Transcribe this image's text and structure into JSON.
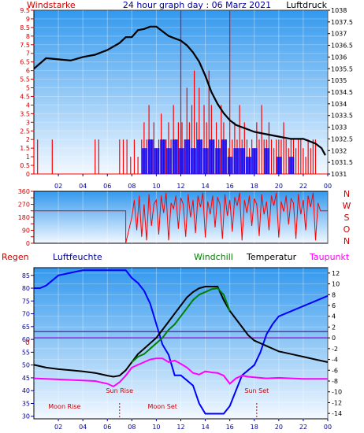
{
  "header": {
    "title": "24 hour graph day : 06 Marz 2021",
    "left_label": "Windstarke",
    "right_label": "Luftdruck"
  },
  "colors": {
    "wind": "#ff0000",
    "gust_bars": "#0000ff",
    "pressure": "#000000",
    "humidity": "#0000ff",
    "temperature": "#000000",
    "windchill": "#008000",
    "dewpoint": "#ff00ff",
    "rain": "#ff0000",
    "panel_top": "#3399ee",
    "panel_bottom": "#f2f8ff",
    "axis_red": "#cc0000",
    "axis_blue": "#000099",
    "annotation": "#cc0000"
  },
  "chart_data": [
    {
      "type": "line",
      "id": "wind-pressure",
      "x_ticks": [
        "02",
        "04",
        "06",
        "08",
        "10",
        "12",
        "14",
        "16",
        "18",
        "20",
        "22",
        "00"
      ],
      "y_left_label": "Windstarke",
      "y_left_ticks": [
        "0",
        "0.5",
        "1",
        "1.5",
        "2",
        "2.5",
        "3",
        "3.5",
        "4",
        "4.5",
        "5",
        "5.5",
        "6",
        "6.5",
        "7",
        "7.5",
        "8",
        "8.5",
        "9",
        "9.5"
      ],
      "ylim_left": [
        0,
        9.5
      ],
      "y_right_label": "Luftdruck",
      "y_right_ticks": [
        "1031",
        "1031.5",
        "1032",
        "1032.5",
        "1033",
        "1033.5",
        "1034",
        "1034.5",
        "1035",
        "1035.5",
        "1036",
        "1036.5",
        "1037",
        "1037.5",
        "1038"
      ],
      "ylim_right": [
        1031,
        1038
      ],
      "series": [
        {
          "name": "Luftdruck",
          "axis": "right",
          "x": [
            0,
            1,
            2,
            3,
            4,
            5,
            6,
            7,
            7.5,
            8,
            8.5,
            9,
            9.5,
            10,
            10.5,
            11,
            11.5,
            12,
            12.5,
            13,
            13.5,
            14,
            14.5,
            15,
            15.5,
            16,
            16.5,
            17,
            17.5,
            18,
            19,
            20,
            21,
            22,
            23,
            23.5,
            23.8
          ],
          "y": [
            1035.5,
            1035.95,
            1035.9,
            1035.85,
            1036.0,
            1036.1,
            1036.3,
            1036.6,
            1036.85,
            1036.85,
            1037.15,
            1037.2,
            1037.3,
            1037.3,
            1037.1,
            1036.9,
            1036.8,
            1036.7,
            1036.5,
            1036.2,
            1035.8,
            1035.2,
            1034.5,
            1034.0,
            1033.6,
            1033.3,
            1033.1,
            1033.0,
            1032.9,
            1032.8,
            1032.7,
            1032.6,
            1032.5,
            1032.5,
            1032.3,
            1032.1,
            1031.8
          ]
        },
        {
          "name": "Windstarke",
          "axis": "left",
          "x": [
            0,
            0.3,
            1.5,
            5.0,
            5.3,
            7.0,
            7.3,
            7.6,
            7.9,
            8.2,
            8.5,
            8.8,
            9.0,
            9.2,
            9.4,
            9.6,
            9.8,
            10.0,
            10.2,
            10.4,
            10.6,
            10.8,
            11.0,
            11.2,
            11.4,
            11.6,
            11.8,
            12.0,
            12.1,
            12.3,
            12.5,
            12.7,
            12.9,
            13.1,
            13.3,
            13.5,
            13.7,
            13.9,
            14.1,
            14.3,
            14.5,
            14.7,
            14.9,
            15.1,
            15.3,
            15.5,
            15.7,
            15.9,
            16.0,
            16.2,
            16.4,
            16.6,
            16.8,
            17.0,
            17.2,
            17.4,
            17.6,
            17.8,
            18.0,
            18.2,
            18.4,
            18.6,
            18.8,
            19.0,
            19.2,
            19.4,
            19.6,
            19.8,
            20.0,
            20.2,
            20.4,
            20.6,
            20.8,
            21.0,
            21.2,
            21.4,
            21.6,
            21.8,
            22.0,
            22.2,
            22.4,
            22.6,
            22.8,
            23.0
          ],
          "y": [
            2,
            2,
            2,
            2,
            2,
            2,
            2,
            2,
            1,
            2,
            1,
            2,
            3,
            2,
            4,
            2,
            3,
            1.5,
            2,
            3.5,
            2,
            2,
            3,
            2,
            4,
            2,
            3,
            9.5,
            3,
            2,
            5,
            3,
            4,
            6,
            3,
            5,
            2,
            4,
            3,
            6,
            4,
            2,
            3,
            2,
            4,
            3,
            2,
            1.5,
            9.5,
            2,
            3,
            2,
            4,
            2,
            3,
            2,
            1.5,
            2,
            1.5,
            3,
            2,
            4,
            2,
            2,
            3,
            2,
            1.5,
            2,
            2,
            2,
            3,
            2,
            1.5,
            2,
            2,
            1.5,
            2,
            2,
            1.5,
            1,
            2,
            1.5,
            2,
            2
          ]
        },
        {
          "name": "Wind direction bars (blue)",
          "axis": "left",
          "x": [
            9.0,
            9.5,
            10.0,
            10.5,
            11.0,
            11.5,
            12.0,
            12.5,
            13.0,
            13.5,
            14.0,
            14.5,
            15.0,
            15.5,
            16.0,
            16.5,
            17.0,
            17.5,
            18.0,
            19.0,
            20.0,
            21.0
          ],
          "y": [
            1.5,
            2,
            1.5,
            2,
            1.5,
            2,
            1.5,
            2,
            1.5,
            2,
            1.5,
            2,
            1.5,
            2,
            1,
            1.5,
            1.5,
            1,
            1.5,
            1.5,
            1,
            1
          ]
        }
      ]
    },
    {
      "type": "scatter",
      "id": "wind-direction",
      "x_ticks": [
        "02",
        "04",
        "06",
        "08",
        "10",
        "12",
        "14",
        "16",
        "18",
        "20",
        "22",
        "00"
      ],
      "y_ticks": [
        "0",
        "45",
        "90",
        "135",
        "180",
        "225",
        "270",
        "315",
        "360"
      ],
      "ylim": [
        0,
        360
      ],
      "compass": [
        "N",
        "W",
        "S",
        "O",
        "N"
      ],
      "series": [
        {
          "name": "Wind direction",
          "x": [
            0,
            7.5,
            7.5,
            8.0,
            8.2,
            8.4,
            8.6,
            8.8,
            9.0,
            9.2,
            9.4,
            9.6,
            9.8,
            10.0,
            10.2,
            10.4,
            10.6,
            10.8,
            11.0,
            11.2,
            11.4,
            11.6,
            11.8,
            12.0,
            12.2,
            12.4,
            12.6,
            12.8,
            13.0,
            13.2,
            13.4,
            13.6,
            13.8,
            14.0,
            14.2,
            14.4,
            14.6,
            14.8,
            15.0,
            15.2,
            15.4,
            15.6,
            15.8,
            16.0,
            16.2,
            16.4,
            16.6,
            16.8,
            17.0,
            17.2,
            17.4,
            17.6,
            17.8,
            18.0,
            18.2,
            18.4,
            18.6,
            18.8,
            19.0,
            19.2,
            19.4,
            19.6,
            19.8,
            20.0,
            20.2,
            20.4,
            20.6,
            20.8,
            21.0,
            21.2,
            21.4,
            21.6,
            21.8,
            22.0,
            22.2,
            22.4,
            22.6,
            22.8,
            23.0,
            23.2,
            23.4,
            23.6,
            23.8,
            24.0
          ],
          "y": [
            225,
            225,
            0,
            180,
            300,
            90,
            330,
            45,
            270,
            20,
            340,
            120,
            270,
            300,
            60,
            330,
            210,
            350,
            20,
            280,
            240,
            330,
            100,
            315,
            270,
            45,
            340,
            180,
            300,
            70,
            330,
            250,
            350,
            40,
            290,
            200,
            330,
            110,
            320,
            270,
            30,
            340,
            190,
            300,
            80,
            320,
            260,
            350,
            20,
            300,
            210,
            330,
            120,
            310,
            270,
            50,
            340,
            200,
            290,
            90,
            330,
            260,
            350,
            40,
            290,
            220,
            330,
            130,
            310,
            280,
            30,
            340,
            200,
            300,
            90,
            330,
            250,
            350,
            20,
            280,
            225,
            225,
            225,
            225
          ]
        }
      ]
    },
    {
      "type": "line",
      "id": "temp-humidity",
      "left_labels": [
        "Regen",
        "Luftfeuchte"
      ],
      "right_labels": [
        "Windchill",
        "Temperatur",
        "Taupunkt"
      ],
      "x_ticks": [
        "02",
        "04",
        "06",
        "08",
        "10",
        "12",
        "14",
        "16",
        "18",
        "20",
        "22",
        "00"
      ],
      "y_left_ticks": [
        "30",
        "35",
        "40",
        "45",
        "50",
        "55",
        "60",
        "65",
        "70",
        "75",
        "80",
        "85"
      ],
      "ylim_left": [
        29,
        88
      ],
      "y_right_ticks": [
        "-14",
        "-12",
        "-10",
        "-8",
        "-6",
        "-4",
        "-2",
        "0",
        "2",
        "4",
        "6",
        "8",
        "10",
        "12"
      ],
      "ylim_right": [
        -15,
        13
      ],
      "rain_zero_label": "0",
      "annotations": [
        {
          "text": "Sun Rise",
          "x": 7.0
        },
        {
          "text": "Sun Set",
          "x": 18.2
        },
        {
          "text": "Moon Rise",
          "x": 2.5
        },
        {
          "text": "Moon Set",
          "x": 10.5
        }
      ],
      "series": [
        {
          "name": "Luftfeuchte",
          "axis": "left",
          "x": [
            0,
            0.5,
            1.0,
            1.5,
            2.0,
            3.0,
            4.0,
            5.0,
            6.0,
            6.5,
            7.0,
            7.5,
            8.0,
            8.5,
            9.0,
            9.5,
            10.0,
            10.5,
            11.0,
            11.5,
            12.0,
            12.5,
            13.0,
            13.5,
            14.0,
            14.5,
            15.0,
            15.5,
            16.0,
            16.5,
            17.0,
            17.5,
            18.0,
            18.5,
            19.0,
            19.5,
            20.0,
            20.5,
            21.0,
            21.5,
            22.0,
            22.5,
            23.0,
            23.5,
            24.0
          ],
          "y": [
            80,
            80,
            81,
            83,
            85,
            86,
            87,
            87,
            87,
            87,
            87,
            87,
            84,
            82,
            79,
            74,
            66,
            58,
            54,
            46,
            46,
            44,
            42,
            35,
            31,
            31,
            31,
            31,
            34,
            40,
            46,
            48,
            50,
            55,
            62,
            66,
            69,
            70,
            71,
            72,
            73,
            74,
            75,
            76,
            77
          ]
        },
        {
          "name": "Temperatur",
          "axis": "right",
          "x": [
            0,
            1,
            2,
            3,
            4,
            5,
            6,
            6.5,
            7.0,
            7.5,
            8.0,
            8.5,
            9.0,
            9.5,
            10.0,
            10.5,
            11.0,
            11.5,
            12.0,
            12.5,
            13.0,
            13.5,
            14.0,
            14.5,
            15.0,
            15.5,
            16.0,
            16.5,
            17.0,
            17.5,
            18.0,
            18.5,
            19.0,
            19.5,
            20.0,
            21.0,
            22.0,
            23.0,
            24.0
          ],
          "y": [
            -5,
            -5.5,
            -5.8,
            -6,
            -6.2,
            -6.5,
            -7,
            -7.2,
            -7,
            -6,
            -4.5,
            -3,
            -2,
            -1,
            0,
            1.5,
            3,
            4.5,
            6,
            7.5,
            8.5,
            9.2,
            9.5,
            9.5,
            9.5,
            7,
            5,
            3.5,
            2,
            0.5,
            -0.5,
            -1,
            -1.5,
            -2,
            -2.5,
            -3,
            -3.5,
            -4,
            -4.5
          ]
        },
        {
          "name": "Windchill",
          "axis": "right",
          "x": [
            8.0,
            8.5,
            9.0,
            9.5,
            10.0,
            10.5,
            11.0,
            11.5,
            12.0,
            12.5,
            13.0,
            13.5,
            14.0,
            14.5,
            15.0,
            15.5,
            16.0
          ],
          "y": [
            -4.5,
            -3.5,
            -3,
            -2,
            -1,
            0,
            1.5,
            2.5,
            4,
            5.5,
            7,
            8,
            8.5,
            9,
            9.2,
            8,
            5
          ]
        },
        {
          "name": "Taupunkt",
          "axis": "right",
          "x": [
            0,
            1,
            2,
            3,
            4,
            5,
            6,
            6.5,
            7.0,
            7.5,
            8.0,
            8.5,
            9.0,
            9.5,
            10.0,
            10.5,
            11.0,
            11.5,
            12.0,
            12.5,
            13.0,
            13.5,
            14.0,
            14.5,
            15.0,
            15.5,
            16.0,
            16.5,
            17.0,
            17.5,
            18.0,
            19.0,
            20.0,
            21.0,
            22.0,
            23.0,
            24.0
          ],
          "y": [
            -7.5,
            -7.6,
            -7.7,
            -7.8,
            -7.9,
            -8,
            -8.5,
            -9,
            -8.2,
            -7,
            -5.5,
            -5,
            -4.5,
            -4,
            -3.8,
            -3.8,
            -4.5,
            -4.2,
            -4.8,
            -5.5,
            -6.5,
            -6.8,
            -6.2,
            -6.4,
            -6.5,
            -7,
            -8.5,
            -7.5,
            -7,
            -7.2,
            -7.3,
            -7.5,
            -7.4,
            -7.5,
            -7.6,
            -7.6,
            -7.6
          ]
        },
        {
          "name": "Regen",
          "axis": "rain",
          "x": [
            0,
            24
          ],
          "y": [
            0,
            0
          ]
        }
      ]
    }
  ]
}
